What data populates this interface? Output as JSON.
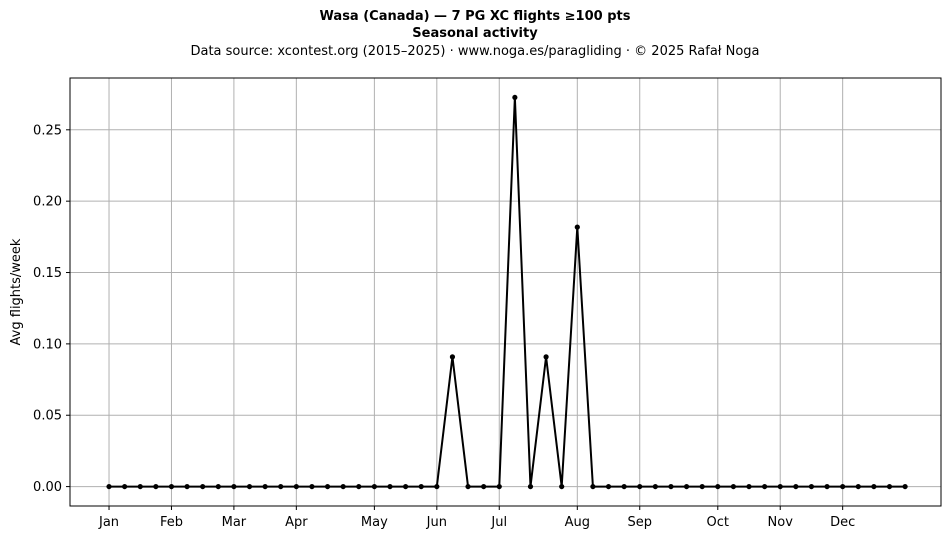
{
  "chart_data": {
    "type": "line",
    "title": "Wasa (Canada)  —  7 PG XC flights ≥100 pts",
    "subtitle": "Seasonal activity",
    "source_note": "Data source: xcontest.org (2015–2025)  ·  www.noga.es/paragliding  ·  © 2025 Rafał Noga",
    "xlabel": "",
    "ylabel": "Avg flights/week",
    "x": [
      1,
      2,
      3,
      4,
      5,
      6,
      7,
      8,
      9,
      10,
      11,
      12,
      13,
      14,
      15,
      16,
      17,
      18,
      19,
      20,
      21,
      22,
      23,
      24,
      25,
      26,
      27,
      28,
      29,
      30,
      31,
      32,
      33,
      34,
      35,
      36,
      37,
      38,
      39,
      40,
      41,
      42,
      43,
      44,
      45,
      46,
      47,
      48,
      49,
      50,
      51,
      52
    ],
    "values": [
      0,
      0,
      0,
      0,
      0,
      0,
      0,
      0,
      0,
      0,
      0,
      0,
      0,
      0,
      0,
      0,
      0,
      0,
      0,
      0,
      0,
      0,
      0.0909,
      0,
      0,
      0,
      0.2727,
      0,
      0.0909,
      0,
      0.1818,
      0,
      0,
      0,
      0,
      0,
      0,
      0,
      0,
      0,
      0,
      0,
      0,
      0,
      0,
      0,
      0,
      0,
      0,
      0,
      0,
      0
    ],
    "xlim": [
      -1.5,
      54.3
    ],
    "ylim": [
      -0.0136,
      0.2863
    ],
    "x_ticks": [
      {
        "week": 1,
        "label": "Jan"
      },
      {
        "week": 5,
        "label": "Feb"
      },
      {
        "week": 9,
        "label": "Mar"
      },
      {
        "week": 13,
        "label": "Apr"
      },
      {
        "week": 18,
        "label": "May"
      },
      {
        "week": 22,
        "label": "Jun"
      },
      {
        "week": 26,
        "label": "Jul"
      },
      {
        "week": 31,
        "label": "Aug"
      },
      {
        "week": 35,
        "label": "Sep"
      },
      {
        "week": 40,
        "label": "Oct"
      },
      {
        "week": 44,
        "label": "Nov"
      },
      {
        "week": 48,
        "label": "Dec"
      }
    ],
    "y_ticks": [
      {
        "value": 0,
        "label": "0.00"
      },
      {
        "value": 0.05,
        "label": "0.05"
      },
      {
        "value": 0.1,
        "label": "0.10"
      },
      {
        "value": 0.15,
        "label": "0.15"
      },
      {
        "value": 0.2,
        "label": "0.20"
      },
      {
        "value": 0.25,
        "label": "0.25"
      }
    ],
    "grid": true,
    "line_color": "#000000",
    "grid_color": "#b0b0b0"
  }
}
